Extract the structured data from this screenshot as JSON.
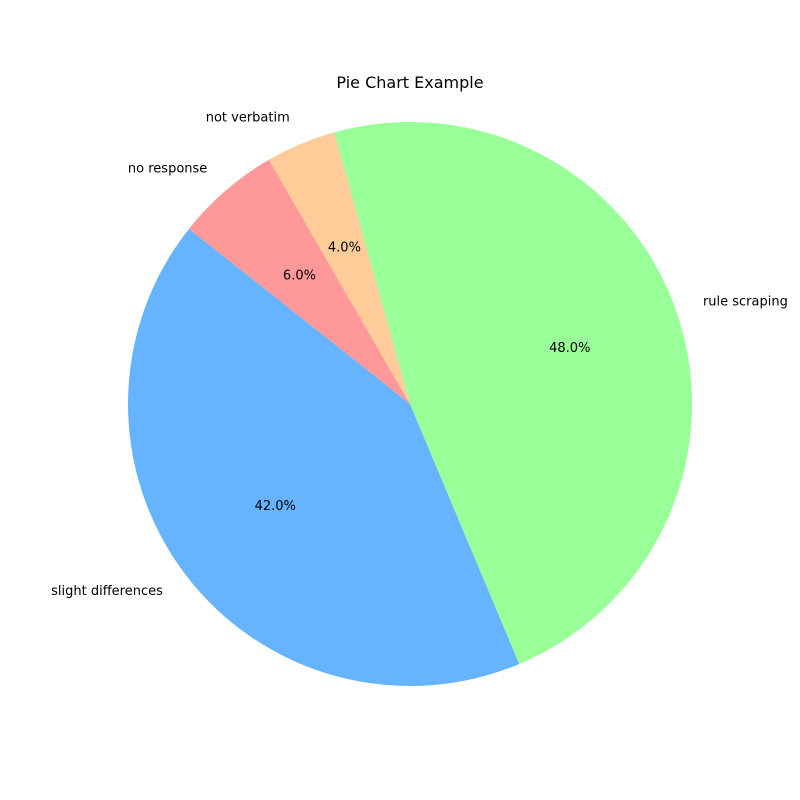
{
  "chart_data": {
    "type": "pie",
    "title": "Pie Chart Example",
    "start_angle_deg": 120,
    "direction": "counterclockwise",
    "slices": [
      {
        "label": "no response",
        "value": 6.0,
        "pct_label": "6.0%",
        "color": "#ff9999"
      },
      {
        "label": "slight differences",
        "value": 42.0,
        "pct_label": "42.0%",
        "color": "#66b3ff"
      },
      {
        "label": "rule scraping",
        "value": 48.0,
        "pct_label": "48.0%",
        "color": "#99ff99"
      },
      {
        "label": "not verbatim",
        "value": 4.0,
        "pct_label": "4.0%",
        "color": "#ffcc99"
      }
    ]
  }
}
